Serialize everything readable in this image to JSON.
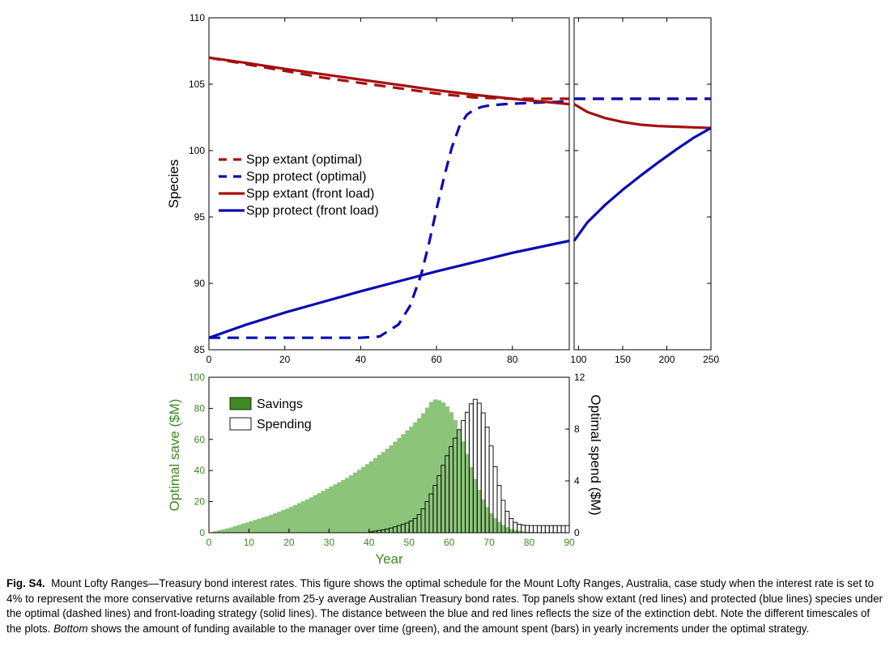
{
  "chart_data": [
    {
      "type": "line",
      "panel": "top-left",
      "ylabel": "Species",
      "xlabel": "",
      "xlim": [
        0,
        95
      ],
      "ylim": [
        85,
        110
      ],
      "xticks": [
        0,
        20,
        40,
        60,
        80
      ],
      "yticks": [
        85,
        90,
        95,
        100,
        105,
        110
      ],
      "legend_position": "left-middle",
      "series": [
        {
          "name": "Spp extant  (optimal)",
          "style": "dashed",
          "color": "#a50f0f",
          "x": [
            0,
            10,
            20,
            30,
            40,
            50,
            60,
            70,
            80,
            95
          ],
          "y": [
            107.0,
            106.5,
            106.0,
            105.5,
            105.1,
            104.7,
            104.3,
            104.0,
            103.9,
            103.9
          ]
        },
        {
          "name": "Spp protect (optimal)",
          "style": "dashed",
          "color": "#0a0ab4",
          "x": [
            0,
            10,
            20,
            30,
            40,
            45,
            50,
            53,
            56,
            58,
            60,
            62,
            64,
            66,
            68,
            70,
            72,
            74,
            78,
            85,
            95
          ],
          "y": [
            85.9,
            85.9,
            85.9,
            85.9,
            85.9,
            86.0,
            86.9,
            88.3,
            90.7,
            93.0,
            95.6,
            98.0,
            100.2,
            101.8,
            102.7,
            103.1,
            103.3,
            103.4,
            103.5,
            103.6,
            103.7
          ]
        },
        {
          "name": "Spp extant  (front load)",
          "style": "solid",
          "color": "#a50f0f",
          "x": [
            0,
            10,
            20,
            30,
            40,
            50,
            60,
            70,
            80,
            95
          ],
          "y": [
            107.0,
            106.6,
            106.15,
            105.75,
            105.35,
            104.95,
            104.55,
            104.2,
            103.9,
            103.5
          ]
        },
        {
          "name": "Spp protect (front load)",
          "style": "solid",
          "color": "#0a0ab4",
          "x": [
            0,
            10,
            20,
            30,
            40,
            50,
            60,
            70,
            80,
            95
          ],
          "y": [
            85.9,
            86.9,
            87.8,
            88.6,
            89.4,
            90.15,
            90.9,
            91.6,
            92.3,
            93.2
          ]
        }
      ]
    },
    {
      "type": "line",
      "panel": "top-right",
      "xlabel": "",
      "xlim": [
        95,
        250
      ],
      "ylim": [
        85,
        110
      ],
      "xticks": [
        100,
        150,
        200,
        250
      ],
      "series": [
        {
          "name": "Spp extant  (optimal)",
          "style": "dashed",
          "color": "#a50f0f",
          "x": [
            95,
            250
          ],
          "y": [
            103.9,
            103.9
          ]
        },
        {
          "name": "Spp protect (optimal)",
          "style": "dashed",
          "color": "#0a0ab4",
          "x": [
            95,
            250
          ],
          "y": [
            103.9,
            103.9
          ]
        },
        {
          "name": "Spp extant  (front load)",
          "style": "solid",
          "color": "#a50f0f",
          "x": [
            95,
            110,
            130,
            150,
            170,
            190,
            210,
            230,
            250
          ],
          "y": [
            103.5,
            102.9,
            102.45,
            102.15,
            101.95,
            101.85,
            101.8,
            101.75,
            101.7
          ]
        },
        {
          "name": "Spp protect (front load)",
          "style": "solid",
          "color": "#0a0ab4",
          "x": [
            95,
            110,
            130,
            150,
            170,
            190,
            210,
            230,
            250
          ],
          "y": [
            93.2,
            94.6,
            95.9,
            97.05,
            98.1,
            99.1,
            100.05,
            100.95,
            101.7
          ]
        }
      ]
    },
    {
      "type": "bar",
      "panel": "bottom",
      "xlabel": "Year",
      "ylabel": "Optimal save ($M)",
      "y2label": "Optimal spend ($M)",
      "xlim": [
        0,
        90
      ],
      "ylim": [
        0,
        100
      ],
      "y2lim": [
        0,
        12
      ],
      "xticks": [
        0,
        10,
        20,
        30,
        40,
        50,
        60,
        70,
        80,
        90
      ],
      "yticks": [
        0,
        20,
        40,
        60,
        80,
        100
      ],
      "y2ticks": [
        0,
        4,
        8,
        12
      ],
      "legend_position": "top-left",
      "series": [
        {
          "name": "Savings",
          "axis": "left",
          "color": "#8cc47a",
          "legend_color": "#3e8a22",
          "x": [
            0,
            5,
            10,
            15,
            20,
            25,
            30,
            35,
            40,
            45,
            50,
            53,
            56,
            58,
            60,
            62,
            64,
            66,
            68,
            70,
            72,
            74,
            76,
            78,
            80,
            85,
            90
          ],
          "values": [
            0,
            3,
            7,
            11,
            16,
            22,
            29,
            36,
            45,
            55,
            67,
            75,
            86,
            85,
            80,
            70,
            55,
            38,
            24,
            14,
            8,
            4,
            2,
            1,
            0.5,
            0,
            0
          ]
        },
        {
          "name": "Spending",
          "axis": "right",
          "color": "#ffffff",
          "x": [
            40,
            42,
            44,
            46,
            48,
            50,
            52,
            53,
            54,
            55,
            56,
            57,
            58,
            59,
            60,
            61,
            62,
            63,
            64,
            65,
            66,
            67,
            68,
            69,
            70,
            71,
            72,
            73,
            74,
            75,
            76,
            77,
            78,
            80,
            82,
            84,
            86,
            88,
            90
          ],
          "values": [
            0.05,
            0.15,
            0.25,
            0.4,
            0.6,
            0.8,
            1.2,
            1.6,
            2.1,
            2.7,
            3.3,
            4.0,
            4.8,
            5.6,
            6.3,
            7.0,
            7.6,
            8.3,
            9.0,
            9.6,
            10.3,
            10.3,
            9.7,
            8.8,
            7.5,
            5.9,
            4.3,
            3.0,
            2.0,
            1.3,
            0.9,
            0.7,
            0.6,
            0.55,
            0.55,
            0.55,
            0.55,
            0.55,
            0.55
          ]
        }
      ]
    }
  ],
  "caption": {
    "figno": "Fig. S4.",
    "text_before_italic": "Mount Lofty Ranges—Treasury bond interest rates. This figure shows the optimal schedule for the Mount Lofty Ranges, Australia, case study when the interest rate is set to 4% to represent the more conservative returns available from 25-y average Australian Treasury bond rates. Top panels show extant (red lines) and protected (blue lines) species under the optimal (dashed lines) and front-loading strategy (solid lines). The distance between the blue and red lines reflects the size of the extinction debt. Note the different timescales of the plots.",
    "italic": "Bottom",
    "text_after_italic": "shows the amount of funding available to the manager over time (green), and the amount spent (bars) in yearly increments under the optimal strategy."
  }
}
